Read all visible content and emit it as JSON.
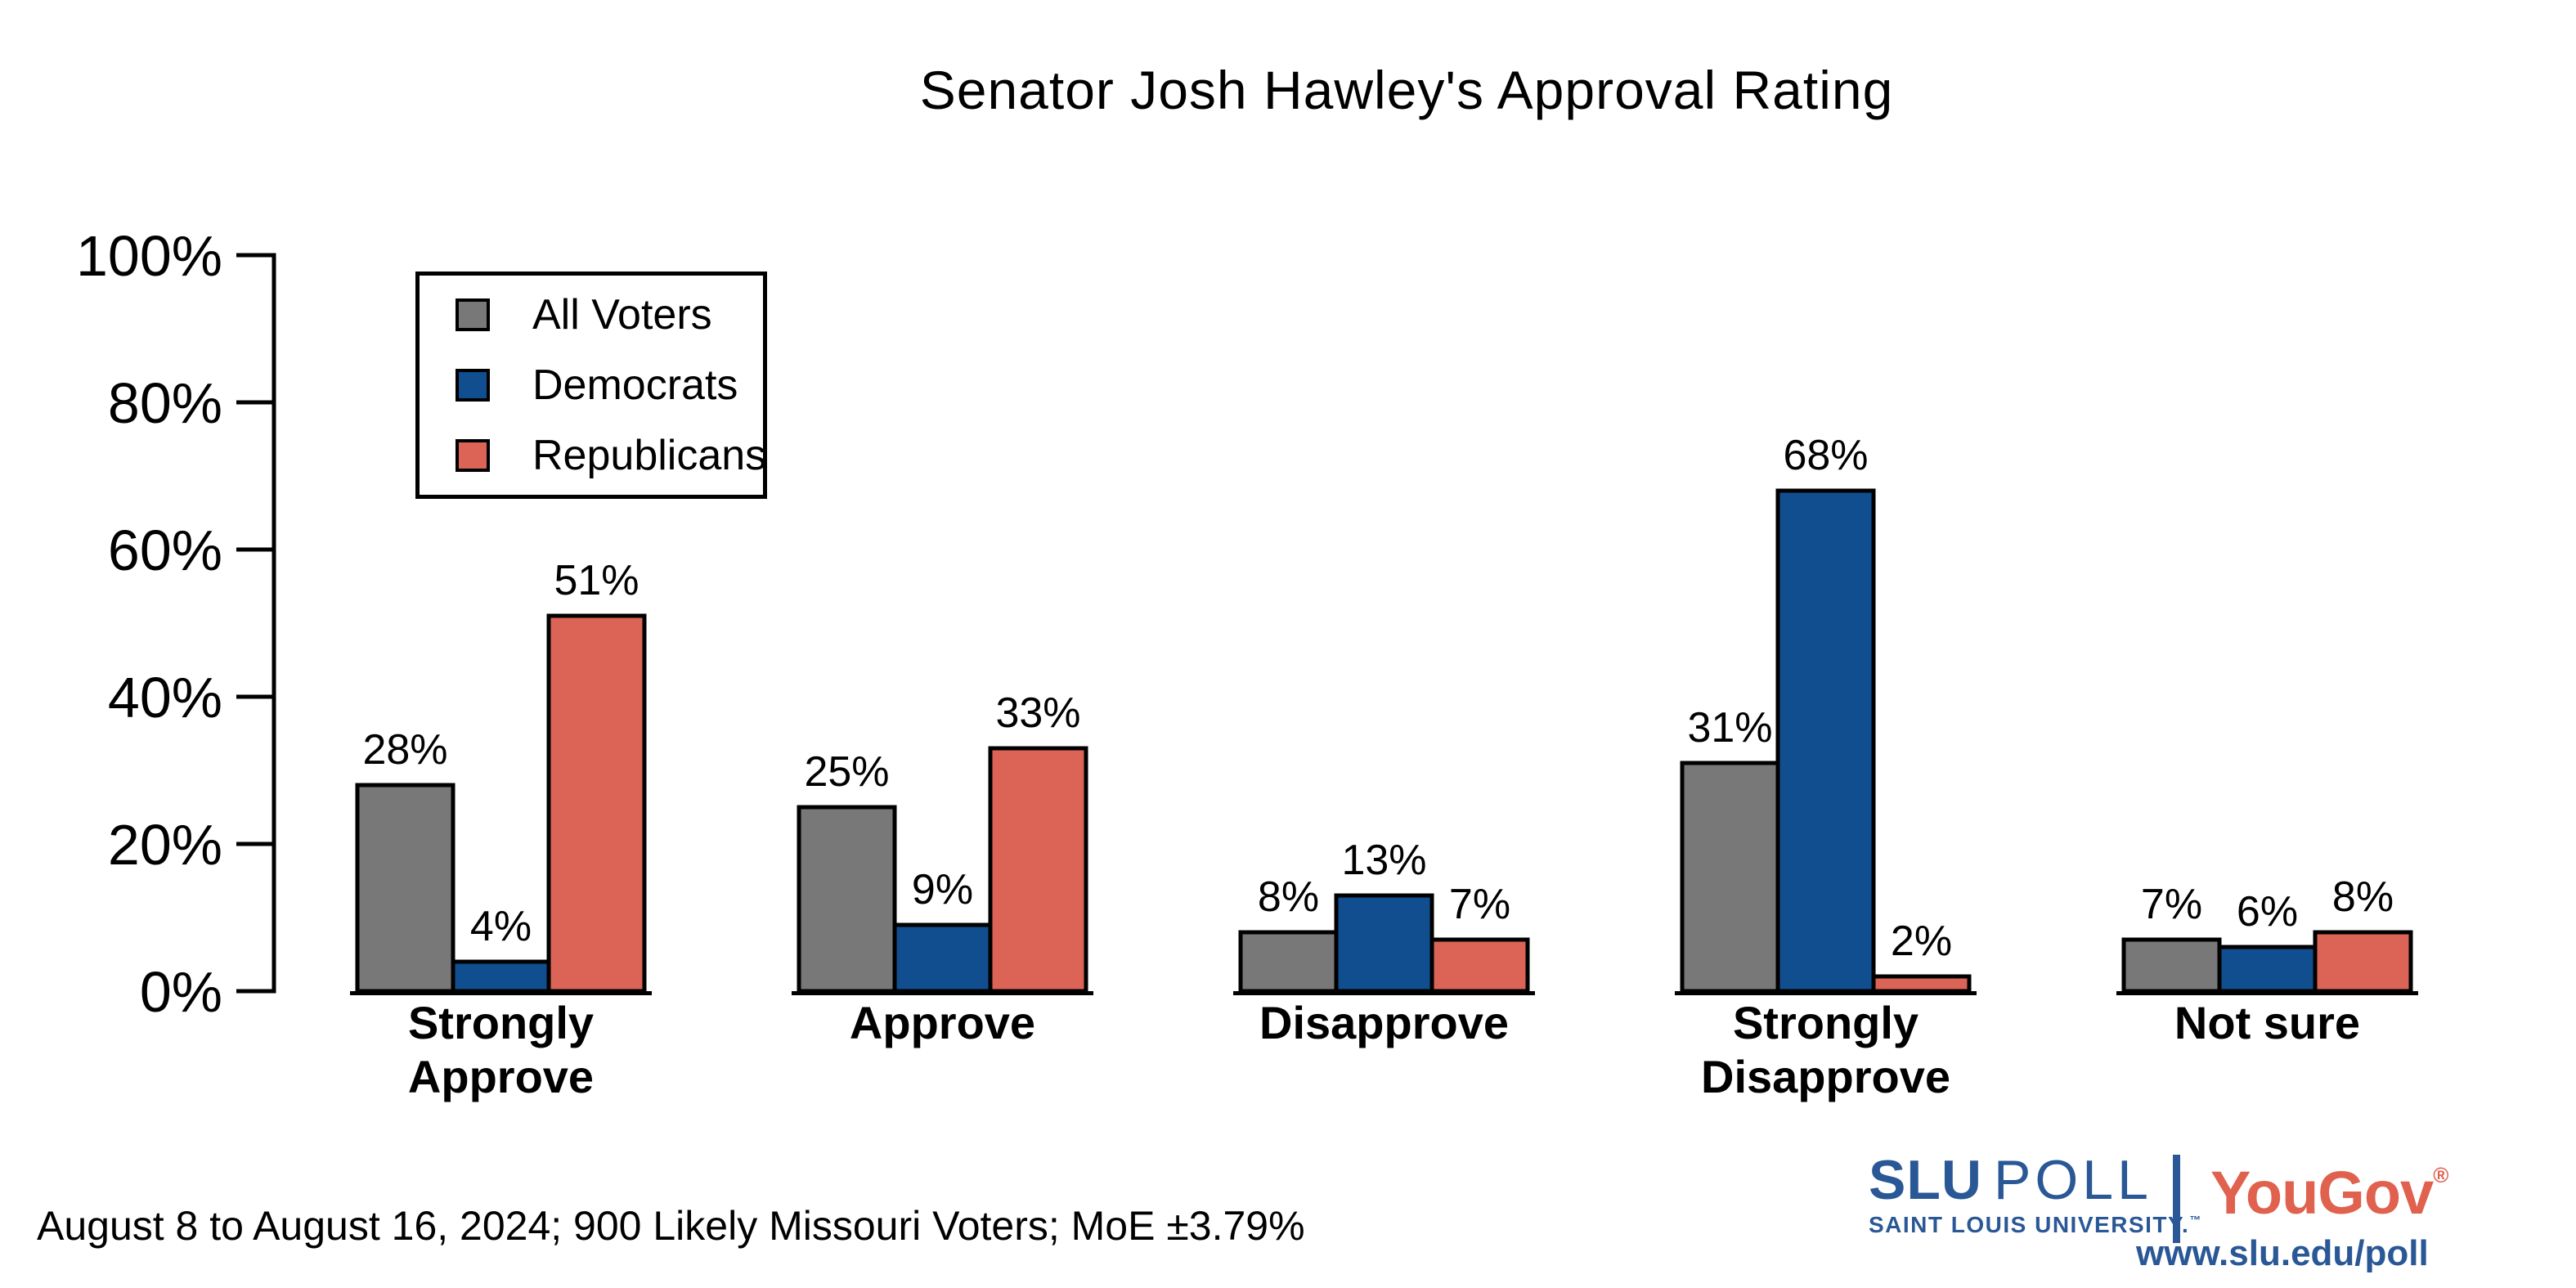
{
  "title": "Senator Josh Hawley's Approval Rating",
  "chart_data": {
    "type": "bar",
    "title": "Senator Josh Hawley's Approval Rating",
    "categories": [
      "Strongly Approve",
      "Approve",
      "Disapprove",
      "Strongly Disapprove",
      "Not sure"
    ],
    "category_label_lines": [
      [
        "Strongly",
        "Approve"
      ],
      [
        "Approve"
      ],
      [
        "Disapprove"
      ],
      [
        "Strongly",
        "Disapprove"
      ],
      [
        "Not sure"
      ]
    ],
    "series": [
      {
        "name": "All Voters",
        "color": "#787878",
        "values": [
          28,
          25,
          8,
          31,
          7
        ]
      },
      {
        "name": "Democrats",
        "color": "#104E8F",
        "values": [
          4,
          9,
          13,
          68,
          6
        ]
      },
      {
        "name": "Republicans",
        "color": "#DB6456",
        "values": [
          51,
          33,
          7,
          2,
          8
        ]
      }
    ],
    "value_label_suffix": "%",
    "y_axis": {
      "ticks": [
        0,
        20,
        40,
        60,
        80,
        100
      ],
      "tick_labels": [
        "0%",
        "20%",
        "40%",
        "60%",
        "80%",
        "100%"
      ],
      "range": [
        0,
        100
      ]
    },
    "grid": false,
    "legend_position": "upper-left",
    "bar_outline_color": "#000000",
    "value_labels": true
  },
  "legend": {
    "items": [
      {
        "label": "All Voters",
        "color": "#787878"
      },
      {
        "label": "Democrats",
        "color": "#104E8F"
      },
      {
        "label": "Republicans",
        "color": "#DB6456"
      }
    ]
  },
  "footer": {
    "note": "August 8 to August 16, 2024; 900 Likely Missouri Voters; MoE ±3.79%"
  },
  "branding": {
    "slu": "SLU",
    "poll": "POLL",
    "university": "SAINT LOUIS UNIVERSITY.",
    "university_tm": "™",
    "yougov": "YouGov",
    "yougov_reg": "®",
    "url": "www.slu.edu/poll",
    "slu_blue": "#2A5795",
    "yougov_red": "#DF614E"
  }
}
